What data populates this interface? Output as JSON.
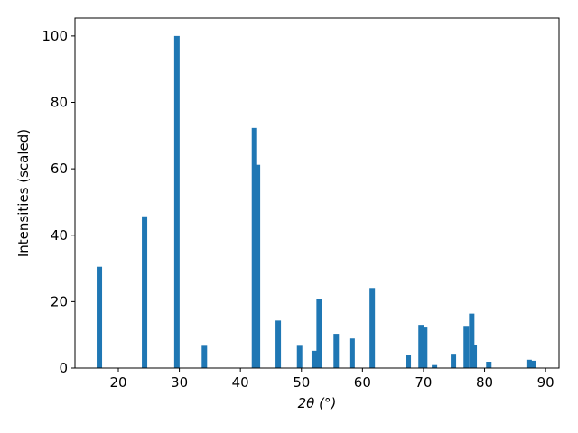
{
  "chart_data": {
    "type": "bar",
    "x_label": "2θ (°)",
    "y_label": "Intensities (scaled)",
    "x": [
      16.9,
      24.3,
      29.6,
      34.1,
      42.3,
      42.8,
      46.2,
      49.7,
      52.1,
      52.9,
      55.7,
      58.3,
      61.6,
      67.5,
      69.6,
      70.2,
      71.8,
      74.9,
      77.0,
      77.9,
      78.3,
      80.7,
      87.3,
      88.0
    ],
    "values": [
      30.5,
      45.7,
      100,
      6.7,
      72.3,
      61.2,
      14.3,
      6.7,
      5.2,
      20.8,
      10.3,
      8.9,
      24.1,
      3.8,
      13.0,
      12.2,
      0.9,
      4.3,
      12.7,
      16.4,
      7.0,
      1.9,
      2.5,
      2.2
    ],
    "color": "#1f77b4",
    "xlim": [
      12.9,
      92.2
    ],
    "xticks": [
      20,
      30,
      40,
      50,
      60,
      70,
      80,
      90
    ],
    "ylim": [
      0,
      105.4
    ],
    "yticks": [
      0,
      20,
      40,
      60,
      80,
      100
    ],
    "grid": false
  }
}
